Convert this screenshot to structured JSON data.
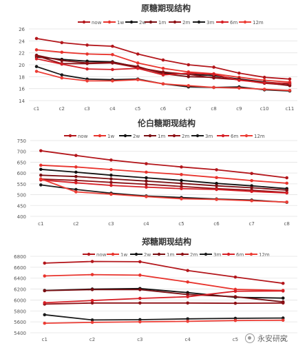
{
  "watermark": "永安研究",
  "styles": {
    "now": {
      "color": "#b3161b",
      "marker": true
    },
    "1w": {
      "color": "#e8332c",
      "marker": true
    },
    "2w": {
      "color": "#111111",
      "marker": true
    },
    "1m": {
      "color": "#7a0e12",
      "marker": true
    },
    "2m": {
      "color": "#8e1015",
      "marker": true
    },
    "3m": {
      "color": "#1a1a1a",
      "marker": true
    },
    "6m": {
      "color": "#d61f26",
      "marker": true
    },
    "12m": {
      "color": "#ec3d35",
      "marker": true
    }
  },
  "chart_data": [
    {
      "type": "line",
      "title": "原糖期现结构",
      "categories": [
        "c1",
        "c2",
        "c3",
        "c4",
        "c5",
        "c6",
        "c7",
        "c8",
        "c9",
        "c10",
        "c11"
      ],
      "ylim": [
        14,
        26
      ],
      "yticks": [
        14,
        16,
        18,
        20,
        22,
        24,
        26
      ],
      "grid": true,
      "legend": "top",
      "series": [
        {
          "name": "now",
          "values": [
            24.4,
            23.7,
            23.3,
            23.1,
            21.8,
            20.8,
            20.0,
            19.6,
            18.6,
            17.9,
            17.6
          ]
        },
        {
          "name": "1w",
          "values": [
            22.5,
            22.1,
            21.8,
            21.7,
            20.3,
            19.4,
            18.8,
            18.5,
            17.9,
            17.4,
            17.1
          ]
        },
        {
          "name": "2w",
          "values": [
            21.3,
            20.9,
            20.6,
            20.5,
            19.6,
            18.6,
            18.4,
            18.2,
            17.6,
            17.1,
            16.8
          ]
        },
        {
          "name": "1m",
          "values": [
            21.6,
            20.7,
            20.3,
            20.4,
            19.7,
            18.5,
            18.0,
            17.9,
            17.5,
            17.0,
            16.5
          ]
        },
        {
          "name": "2m",
          "values": [
            21.5,
            20.2,
            20.2,
            20.3,
            19.5,
            18.8,
            18.4,
            17.8,
            17.5,
            16.9,
            16.6
          ]
        },
        {
          "name": "3m",
          "values": [
            19.7,
            18.3,
            17.6,
            17.5,
            17.6,
            16.8,
            16.3,
            16.2,
            16.3,
            15.8,
            15.6
          ]
        },
        {
          "name": "6m",
          "values": [
            21.0,
            20.1,
            19.3,
            19.2,
            19.4,
            18.3,
            18.6,
            18.4,
            17.4,
            17.0,
            16.9
          ]
        },
        {
          "name": "12m",
          "values": [
            18.9,
            17.8,
            17.3,
            17.3,
            17.5,
            16.8,
            16.5,
            16.2,
            16.1,
            15.9,
            15.7
          ]
        }
      ]
    },
    {
      "type": "line",
      "title": "伦白糖期现结构",
      "categories": [
        "c1",
        "c2",
        "c3",
        "c4",
        "c5",
        "c6",
        "c7",
        "c8"
      ],
      "ylim": [
        400,
        750
      ],
      "yticks": [
        400,
        450,
        500,
        550,
        600,
        650,
        700,
        750
      ],
      "grid": true,
      "legend": "top",
      "series": [
        {
          "name": "now",
          "values": [
            703,
            681,
            660,
            643,
            628,
            615,
            598,
            578
          ]
        },
        {
          "name": "1w",
          "values": [
            636,
            628,
            616,
            604,
            593,
            579,
            565,
            553
          ]
        },
        {
          "name": "2w",
          "values": [
            617,
            604,
            590,
            578,
            566,
            552,
            541,
            528
          ]
        },
        {
          "name": "1m",
          "values": [
            590,
            584,
            573,
            563,
            552,
            541,
            532,
            521
          ]
        },
        {
          "name": "2m",
          "values": [
            572,
            566,
            557,
            548,
            538,
            528,
            521,
            510
          ]
        },
        {
          "name": "3m",
          "values": [
            545,
            524,
            507,
            494,
            487,
            480,
            475,
            465
          ]
        },
        {
          "name": "6m",
          "values": [
            568,
            555,
            543,
            535,
            528,
            524,
            515,
            508
          ]
        },
        {
          "name": "12m",
          "values": [
            573,
            513,
            502,
            491,
            481,
            478,
            472,
            466
          ]
        }
      ]
    },
    {
      "type": "line",
      "title": "郑糖期现结构",
      "categories": [
        "c1",
        "c2",
        "c3",
        "c4",
        "c5",
        "c6"
      ],
      "ylim": [
        5400,
        6800
      ],
      "yticks": [
        5400,
        5600,
        5800,
        6000,
        6200,
        6400,
        6600,
        6800
      ],
      "grid": true,
      "legend": "top",
      "series": [
        {
          "name": "now",
          "values": [
            6675,
            6705,
            6700,
            6540,
            6420,
            6305
          ]
        },
        {
          "name": "1w",
          "values": [
            6440,
            6465,
            6455,
            6330,
            6195,
            6175
          ]
        },
        {
          "name": "2w",
          "values": [
            6175,
            6200,
            6210,
            6135,
            6050,
            6035
          ]
        },
        {
          "name": "1m",
          "values": [
            6170,
            6190,
            6190,
            6100,
            6060,
            5965
          ]
        },
        {
          "name": "2m",
          "values": [
            5925,
            5945,
            5945,
            5945,
            5940,
            5945
          ]
        },
        {
          "name": "3m",
          "values": [
            5730,
            5635,
            5640,
            5655,
            5665,
            5670
          ]
        },
        {
          "name": "6m",
          "values": [
            5950,
            5990,
            6030,
            6060,
            6160,
            6165
          ]
        },
        {
          "name": "12m",
          "values": [
            5575,
            5590,
            5600,
            5610,
            5625,
            5630
          ]
        }
      ]
    }
  ]
}
